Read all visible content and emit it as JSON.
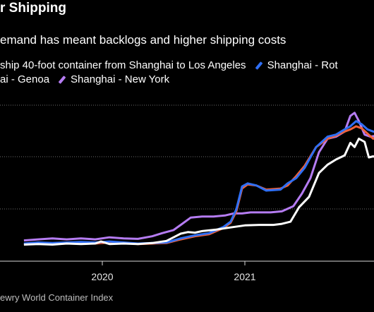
{
  "title": "r Shipping",
  "subtitle": "emand has meant backlogs and higher shipping costs",
  "legend": [
    {
      "label": "ship 40-foot container from Shanghai to Los Angeles",
      "color": "#ffffff"
    },
    {
      "label": "Shanghai - Rot",
      "color": "#2f6ff5"
    },
    {
      "label": "ai - Genoa",
      "color": "#f0623a"
    },
    {
      "label": "Shanghai - New York",
      "color": "#b57cf2"
    }
  ],
  "source": "ewry World Container Index",
  "chart_data": {
    "type": "line",
    "x_tick_labels": [
      "2020",
      "2021"
    ],
    "grid": "horizontal dotted gridlines",
    "series": [
      {
        "name": "ship 40-foot container from Shanghai to Los Angeles",
        "color": "#ffffff",
        "x": [
          2019.45,
          2019.55,
          2019.65,
          2019.75,
          2019.85,
          2019.95,
          2019.99,
          2020.05,
          2020.15,
          2020.25,
          2020.35,
          2020.45,
          2020.5,
          2020.55,
          2020.6,
          2020.65,
          2020.7,
          2020.8,
          2020.9,
          2021.0,
          2021.1,
          2021.2,
          2021.26,
          2021.32,
          2021.38,
          2021.45,
          2021.52,
          2021.58,
          2021.64,
          2021.7,
          2021.74,
          2021.77,
          2021.8,
          2021.84,
          2021.87,
          2021.9,
          2021.93
        ],
        "y": [
          1600,
          1650,
          1600,
          1700,
          1650,
          1700,
          1900,
          1650,
          1700,
          1650,
          1750,
          1950,
          2300,
          2650,
          2800,
          2750,
          2900,
          3050,
          3250,
          3450,
          3500,
          3500,
          3600,
          3800,
          5200,
          6200,
          8500,
          9300,
          9800,
          10200,
          11400,
          11000,
          11800,
          11500,
          10000,
          10100,
          10000
        ]
      },
      {
        "name": "Shanghai - Rot",
        "color": "#2f6ff5",
        "x": [
          2019.45,
          2019.55,
          2019.65,
          2019.75,
          2019.85,
          2019.95,
          2020.05,
          2020.15,
          2020.25,
          2020.35,
          2020.45,
          2020.55,
          2020.65,
          2020.75,
          2020.8,
          2020.85,
          2020.9,
          2020.94,
          2020.98,
          2021.02,
          2021.08,
          2021.15,
          2021.25,
          2021.3,
          2021.36,
          2021.42,
          2021.5,
          2021.58,
          2021.64,
          2021.7,
          2021.74,
          2021.78,
          2021.82,
          2021.86,
          2021.9,
          2021.93
        ],
        "y": [
          1700,
          1800,
          1750,
          1800,
          1850,
          1800,
          1900,
          1800,
          1700,
          1750,
          1800,
          2200,
          2500,
          2700,
          3000,
          3300,
          3800,
          5000,
          7200,
          7500,
          7300,
          6800,
          6900,
          7500,
          8000,
          9000,
          11000,
          12000,
          12200,
          12700,
          13000,
          13500,
          13200,
          12700,
          12500,
          12400
        ]
      },
      {
        "name": "ai - Genoa",
        "color": "#f0623a",
        "x": [
          2019.45,
          2019.55,
          2019.65,
          2019.75,
          2019.85,
          2019.95,
          2020.05,
          2020.15,
          2020.25,
          2020.35,
          2020.45,
          2020.55,
          2020.65,
          2020.75,
          2020.8,
          2020.85,
          2020.9,
          2020.94,
          2020.98,
          2021.02,
          2021.08,
          2021.15,
          2021.25,
          2021.3,
          2021.36,
          2021.42,
          2021.5,
          2021.58,
          2021.64,
          2021.7,
          2021.74,
          2021.78,
          2021.82,
          2021.86,
          2021.9,
          2021.93
        ],
        "y": [
          1600,
          1700,
          1650,
          1700,
          1750,
          1700,
          1800,
          1750,
          1650,
          1700,
          1750,
          2100,
          2400,
          2600,
          2900,
          3200,
          3700,
          4800,
          7000,
          7400,
          7300,
          6900,
          7000,
          7300,
          8200,
          9200,
          11000,
          11800,
          12100,
          12500,
          12700,
          13000,
          12800,
          12300,
          11800,
          12000
        ]
      },
      {
        "name": "Shanghai - New York",
        "color": "#b57cf2",
        "x": [
          2019.45,
          2019.55,
          2019.65,
          2019.75,
          2019.85,
          2019.95,
          2020.05,
          2020.15,
          2020.25,
          2020.35,
          2020.42,
          2020.5,
          2020.55,
          2020.62,
          2020.7,
          2020.78,
          2020.86,
          2020.92,
          2020.98,
          2021.04,
          2021.1,
          2021.18,
          2021.26,
          2021.34,
          2021.4,
          2021.46,
          2021.52,
          2021.58,
          2021.64,
          2021.7,
          2021.74,
          2021.77,
          2021.8,
          2021.84,
          2021.88,
          2021.93
        ],
        "y": [
          2000,
          2100,
          2200,
          2100,
          2200,
          2100,
          2300,
          2200,
          2150,
          2400,
          2700,
          3000,
          3500,
          4200,
          4300,
          4300,
          4400,
          4600,
          4600,
          4700,
          4700,
          4700,
          4800,
          5300,
          6500,
          8000,
          10500,
          11800,
          12000,
          12500,
          14000,
          14300,
          13500,
          12200,
          12000,
          12100
        ]
      }
    ]
  }
}
